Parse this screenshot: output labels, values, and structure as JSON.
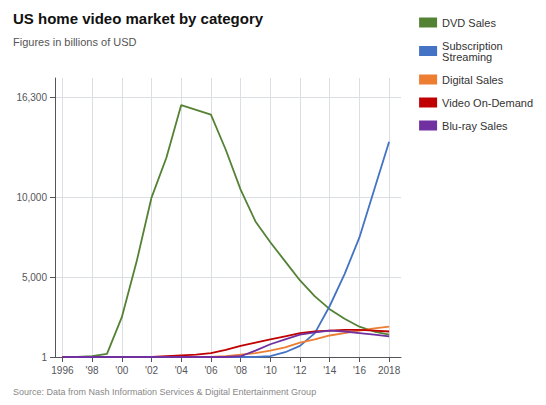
{
  "chart_data": {
    "type": "line",
    "title": "US home video market by category",
    "subtitle": "Figures in billions of USD",
    "annotations": [
      "Source: Data from Nash Information Services & Digital Entertainment Group"
    ],
    "x": [
      1996,
      1997,
      1998,
      1999,
      2000,
      2001,
      2002,
      2003,
      2004,
      2005,
      2006,
      2007,
      2008,
      2009,
      2010,
      2011,
      2012,
      2013,
      2014,
      2015,
      2016,
      2017,
      2018
    ],
    "series": [
      {
        "name": "DVD Sales",
        "color": "#548235",
        "values": [
          1,
          1,
          50,
          200,
          2500,
          6000,
          10000,
          12500,
          15800,
          15500,
          15200,
          13000,
          10500,
          8500,
          7200,
          6000,
          4800,
          3800,
          3000,
          2400,
          1900,
          1600,
          1400
        ]
      },
      {
        "name": "Subscription\nStreaming",
        "color": "#4472c4",
        "values": [
          1,
          1,
          1,
          1,
          1,
          1,
          1,
          1,
          1,
          1,
          1,
          1,
          1,
          1,
          50,
          300,
          700,
          1500,
          3200,
          5200,
          7500,
          10500,
          13500
        ]
      },
      {
        "name": "Digital Sales",
        "color": "#ed7d31",
        "values": [
          1,
          1,
          1,
          1,
          1,
          1,
          1,
          1,
          1,
          1,
          1,
          50,
          150,
          250,
          400,
          600,
          900,
          1100,
          1350,
          1500,
          1650,
          1800,
          1900
        ]
      },
      {
        "name": "Video On-Demand",
        "color": "#c00000",
        "values": [
          1,
          1,
          1,
          1,
          1,
          1,
          1,
          50,
          100,
          150,
          250,
          450,
          700,
          900,
          1100,
          1300,
          1500,
          1600,
          1650,
          1700,
          1700,
          1650,
          1600
        ]
      },
      {
        "name": "Blu-ray Sales",
        "color": "#7030a0",
        "values": [
          1,
          1,
          1,
          1,
          1,
          1,
          1,
          1,
          1,
          1,
          1,
          1,
          50,
          400,
          800,
          1100,
          1400,
          1550,
          1650,
          1600,
          1500,
          1400,
          1300
        ]
      }
    ],
    "xlim": [
      1995.5,
      2018.8
    ],
    "xticks": [
      1996,
      {
        "value": 1998,
        "label": "'98"
      },
      {
        "value": 2000,
        "label": "'00"
      },
      {
        "value": 2002,
        "label": "'02"
      },
      {
        "value": 2004,
        "label": "'04"
      },
      {
        "value": 2006,
        "label": "'06"
      },
      {
        "value": 2008,
        "label": "'08"
      },
      {
        "value": 2010,
        "label": "'10"
      },
      {
        "value": 2012,
        "label": "'12"
      },
      {
        "value": 2014,
        "label": "'14"
      },
      {
        "value": 2016,
        "label": "'16"
      },
      2018
    ],
    "ylim": [
      1,
      17500
    ],
    "yticks": [
      1,
      {
        "value": 5000,
        "label": "5,000"
      },
      {
        "value": 10000,
        "label": "10,000"
      },
      {
        "value": 16300,
        "label": "16,300"
      }
    ],
    "grid": true,
    "legend": "right"
  }
}
